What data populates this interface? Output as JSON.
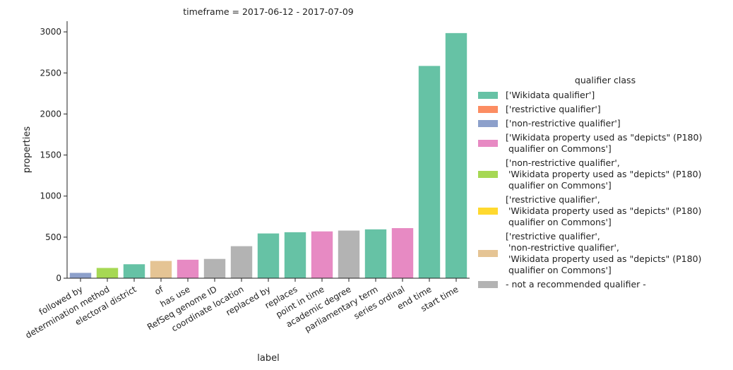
{
  "chart_data": {
    "type": "bar",
    "title": "timeframe = 2017-06-12 - 2017-07-09",
    "xlabel": "label",
    "ylabel": "properties",
    "ylim": [
      0,
      3130
    ],
    "yticks": [
      0,
      500,
      1000,
      1500,
      2000,
      2500,
      3000
    ],
    "grid": false,
    "legend_title": "qualifier class",
    "legend_position": "right",
    "classes": [
      {
        "name": "['Wikidata qualifier']",
        "color": "#66c2a5",
        "lines": [
          "['Wikidata qualifier']"
        ]
      },
      {
        "name": "['restrictive qualifier']",
        "color": "#fc8d62",
        "lines": [
          "['restrictive qualifier']"
        ]
      },
      {
        "name": "['non-restrictive qualifier']",
        "color": "#8da0cb",
        "lines": [
          "['non-restrictive qualifier']"
        ]
      },
      {
        "name": "['Wikidata property used as \"depicts\" (P180) qualifier on Commons']",
        "color": "#e78ac3",
        "lines": [
          "['Wikidata property used as \"depicts\" (P180)",
          " qualifier on Commons']"
        ]
      },
      {
        "name": "['non-restrictive qualifier', 'Wikidata property used as \"depicts\" (P180) qualifier on Commons']",
        "color": "#a6d854",
        "lines": [
          "['non-restrictive qualifier',",
          " 'Wikidata property used as \"depicts\" (P180)",
          " qualifier on Commons']"
        ]
      },
      {
        "name": "['restrictive qualifier', 'Wikidata property used as \"depicts\" (P180) qualifier on Commons']",
        "color": "#ffd92f",
        "lines": [
          "['restrictive qualifier',",
          " 'Wikidata property used as \"depicts\" (P180)",
          " qualifier on Commons']"
        ]
      },
      {
        "name": "['restrictive qualifier', 'non-restrictive qualifier', 'Wikidata property used as \"depicts\" (P180) qualifier on Commons']",
        "color": "#e5c494",
        "lines": [
          "['restrictive qualifier',",
          " 'non-restrictive qualifier',",
          " 'Wikidata property used as \"depicts\" (P180)",
          " qualifier on Commons']"
        ]
      },
      {
        "name": "- not a recommended qualifier -",
        "color": "#b3b3b3",
        "lines": [
          "- not a recommended qualifier -"
        ]
      }
    ],
    "bars": [
      {
        "label": "followed by",
        "value": 65,
        "class_index": 2
      },
      {
        "label": "determination method",
        "value": 125,
        "class_index": 4
      },
      {
        "label": "electoral district",
        "value": 170,
        "class_index": 0
      },
      {
        "label": "of",
        "value": 210,
        "class_index": 6
      },
      {
        "label": "has use",
        "value": 225,
        "class_index": 3
      },
      {
        "label": "RefSeq genome ID",
        "value": 235,
        "class_index": 7
      },
      {
        "label": "coordinate location",
        "value": 390,
        "class_index": 7
      },
      {
        "label": "replaced by",
        "value": 545,
        "class_index": 0
      },
      {
        "label": "replaces",
        "value": 560,
        "class_index": 0
      },
      {
        "label": "point in time",
        "value": 570,
        "class_index": 3
      },
      {
        "label": "academic degree",
        "value": 580,
        "class_index": 7
      },
      {
        "label": "parliamentary term",
        "value": 595,
        "class_index": 0
      },
      {
        "label": "series ordinal",
        "value": 610,
        "class_index": 3
      },
      {
        "label": "end time",
        "value": 2585,
        "class_index": 0
      },
      {
        "label": "start time",
        "value": 2985,
        "class_index": 0
      }
    ]
  }
}
